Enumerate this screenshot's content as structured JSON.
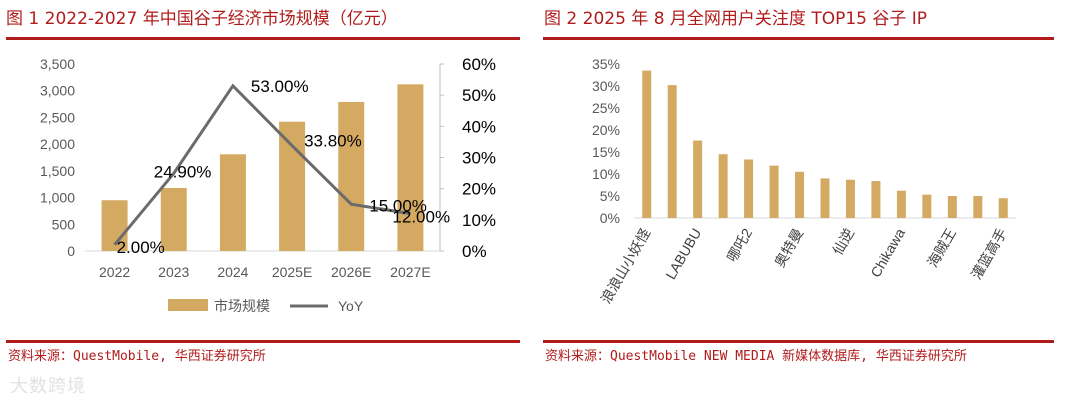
{
  "figures": [
    {
      "title": "图 1   2022-2027 年中国谷子经济市场规模（亿元）",
      "source": "资料来源：QuestMobile, 华西证券研究所"
    },
    {
      "title": "图 2   2025 年 8 月全网用户关注度 TOP15 谷子 IP",
      "source": "资料来源：QuestMobile NEW MEDIA 新媒体数据库, 华西证券研究所"
    }
  ],
  "watermark": "大数跨境",
  "colors": {
    "bar": "#d4aa63",
    "line": "#6b6b6b",
    "accent": "#b01c1c",
    "axis_text": "#595959"
  },
  "chart_data": [
    {
      "type": "bar",
      "categories": [
        "2022",
        "2023",
        "2024",
        "2025E",
        "2026E",
        "2027E"
      ],
      "series": [
        {
          "name": "市场规模",
          "type": "bar",
          "axis": "left",
          "values": [
            950,
            1180,
            1810,
            2420,
            2790,
            3120
          ]
        },
        {
          "name": "YoY",
          "type": "line",
          "axis": "right",
          "values": [
            2.0,
            24.9,
            53.0,
            33.8,
            15.0,
            12.0
          ],
          "data_labels": [
            "2.00%",
            "24.90%",
            "53.00%",
            "33.80%",
            "15.00%",
            "12.00%"
          ]
        }
      ],
      "ylim": [
        0,
        3500
      ],
      "yticks": [
        "0",
        "500",
        "1,000",
        "1,500",
        "2,000",
        "2,500",
        "3,000",
        "3,500"
      ],
      "y2lim": [
        0,
        60
      ],
      "y2ticks": [
        "0%",
        "10%",
        "20%",
        "30%",
        "40%",
        "50%",
        "60%"
      ],
      "legend_position": "bottom",
      "grid": false
    },
    {
      "type": "bar",
      "categories": [
        "浪浪山小妖怪",
        "",
        "LABUBU",
        "",
        "哪吒2",
        "",
        "奥特曼",
        "",
        "仙逆",
        "",
        "Chikawa",
        "",
        "海贼王",
        "",
        "灌篮高手"
      ],
      "values": [
        33.5,
        30.2,
        17.6,
        14.5,
        13.3,
        11.9,
        10.5,
        9.0,
        8.7,
        8.4,
        6.2,
        5.3,
        5.0,
        5.0,
        4.5
      ],
      "ylim": [
        0,
        35
      ],
      "yticks": [
        "0%",
        "5%",
        "10%",
        "15%",
        "20%",
        "25%",
        "30%",
        "35%"
      ],
      "grid": false
    }
  ]
}
